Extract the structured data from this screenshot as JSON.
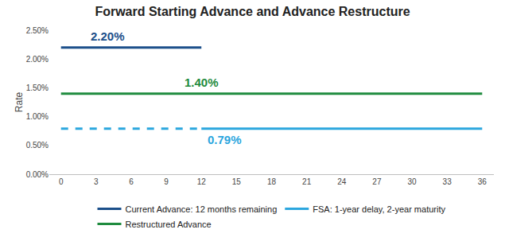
{
  "chart_data": {
    "type": "line",
    "title": "Forward Starting Advance and Advance Restructure",
    "y_label": "Rate",
    "xlim": [
      -1,
      37
    ],
    "xticks": [
      0,
      3,
      6,
      9,
      12,
      15,
      18,
      21,
      24,
      27,
      30,
      33,
      36
    ],
    "ylim": [
      0,
      2.5
    ],
    "yticks": [
      {
        "value": 0,
        "label": "0.00%"
      },
      {
        "value": 0.5,
        "label": "0.50%"
      },
      {
        "value": 1,
        "label": "1.00%"
      },
      {
        "value": 1.5,
        "label": "1.50%"
      },
      {
        "value": 2,
        "label": "2.00%"
      },
      {
        "value": 2.5,
        "label": "2.50%"
      }
    ],
    "grid": false,
    "legend": "bottom",
    "data_labels": true,
    "series": [
      {
        "name": "Current Advance: 12 months remaining",
        "color": "#1b4f8a",
        "line_style": "solid",
        "x": [
          0,
          4,
          12
        ],
        "values": [
          2.2,
          2.2,
          2.2
        ],
        "value_labels": [
          null,
          "2.20%",
          null
        ]
      },
      {
        "name": "FSA: 1-year delay, 2-year maturity",
        "color": "#2ba6de",
        "line_style": "solid",
        "x": [
          12,
          14,
          36
        ],
        "values": [
          0.79,
          0.79,
          0.79
        ],
        "value_labels": [
          null,
          "0.79%",
          null
        ]
      },
      {
        "color": "#2ba6de",
        "line_style": "dashed",
        "x": [
          0,
          12
        ],
        "values": [
          0.79,
          0.79
        ]
      },
      {
        "name": "Restructured Advance",
        "color": "#1f8b3e",
        "line_style": "solid",
        "x": [
          0,
          12,
          36
        ],
        "values": [
          1.4,
          1.4,
          1.4
        ],
        "value_labels": [
          null,
          "1.40%",
          null
        ]
      }
    ]
  }
}
